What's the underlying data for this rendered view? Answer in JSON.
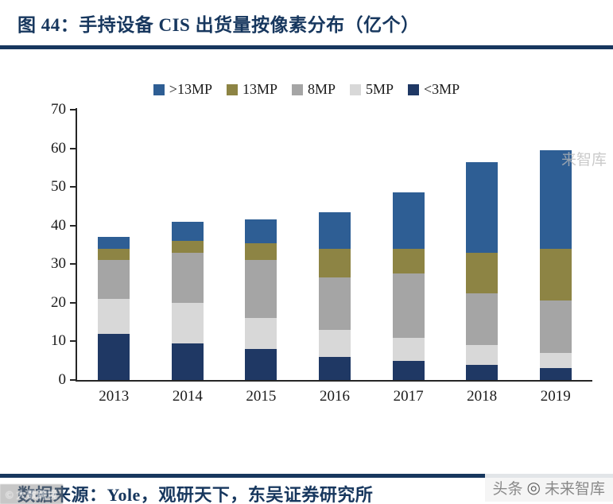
{
  "header": {
    "title": "图 44：手持设备 CIS 出货量按像素分布（亿个）"
  },
  "footer": {
    "source": "数据来源：Yole，观研天下，东吴证券研究所"
  },
  "watermarks": {
    "bottom_right_brand": "头条",
    "bottom_right_name": "未来智库",
    "logo_glyph": "◎",
    "bottom_left": "© 大数跨境",
    "side": "来智库"
  },
  "colors": {
    "accent_navy": "#17375E",
    "axis": "#262626",
    "bar_blue": "#2E5E94",
    "bar_olive": "#8D8444",
    "bar_gray": "#A5A5A5",
    "bar_lightgray": "#D8D8D8",
    "bar_navy": "#1F3864"
  },
  "chart_data": {
    "type": "bar",
    "stacked": true,
    "title": "手持设备 CIS 出货量按像素分布（亿个）",
    "categories": [
      "2013",
      "2014",
      "2015",
      "2016",
      "2017",
      "2018",
      "2019"
    ],
    "series": [
      {
        "name": "<3MP",
        "color": "#1F3864",
        "values": [
          12,
          9.5,
          8,
          6,
          5,
          4,
          3
        ]
      },
      {
        "name": "5MP",
        "color": "#D8D8D8",
        "values": [
          9,
          10.5,
          8,
          7,
          6,
          5,
          4
        ]
      },
      {
        "name": "8MP",
        "color": "#A5A5A5",
        "values": [
          10,
          13,
          15,
          13.5,
          16.5,
          13.5,
          13.5
        ]
      },
      {
        "name": "13MP",
        "color": "#8D8444",
        "values": [
          3,
          3,
          4.5,
          7.5,
          6.5,
          10.5,
          13.5
        ]
      },
      {
        "name": ">13MP",
        "color": "#2E5E94",
        "values": [
          3,
          5,
          6,
          9.5,
          14.5,
          23.5,
          25.5
        ]
      }
    ],
    "totals": [
      37,
      41,
      41.5,
      43.5,
      48.5,
      56.5,
      59.5
    ],
    "legend_order": [
      ">13MP",
      "13MP",
      "8MP",
      "5MP",
      "<3MP"
    ],
    "legend_position": "top",
    "ylim": [
      0,
      70
    ],
    "yticks": [
      0,
      10,
      20,
      30,
      40,
      50,
      60,
      70
    ],
    "grid": false,
    "xlabel": "",
    "ylabel": ""
  }
}
